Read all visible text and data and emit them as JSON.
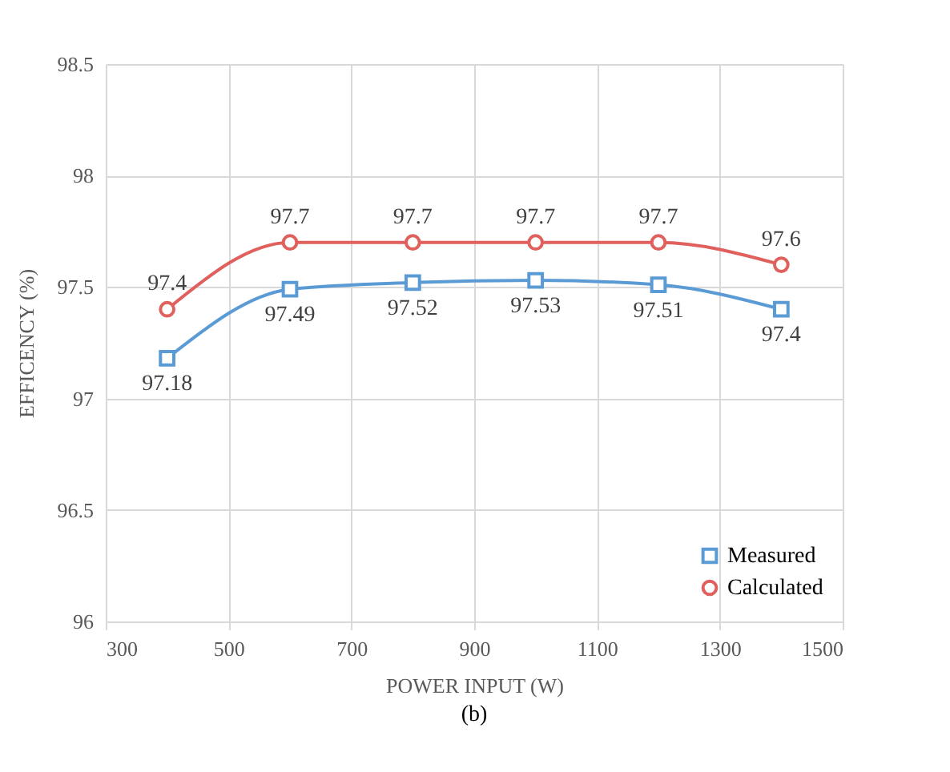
{
  "chart_data": {
    "type": "line",
    "xlabel": "POWER INPUT (W)",
    "ylabel": "EFFICENCY (%)",
    "x": [
      400,
      600,
      800,
      1000,
      1200,
      1400
    ],
    "series": [
      {
        "name": "Measured",
        "color": "#5b9bd5",
        "marker": "square",
        "values": [
          97.18,
          97.49,
          97.52,
          97.53,
          97.51,
          97.4
        ]
      },
      {
        "name": "Calculated",
        "color": "#e0605e",
        "marker": "circle",
        "values": [
          97.4,
          97.7,
          97.7,
          97.7,
          97.7,
          97.6
        ]
      }
    ],
    "xlim": [
      300,
      1500
    ],
    "xticks": [
      300,
      500,
      700,
      900,
      1100,
      1300,
      1500
    ],
    "ylim": [
      96,
      98.5
    ],
    "yticks": [
      96,
      96.5,
      97,
      97.5,
      98,
      98.5
    ],
    "grid": true,
    "legend": "bottom right",
    "data_labels": true,
    "line_style": "solid",
    "annotations": [
      "(b)"
    ]
  }
}
